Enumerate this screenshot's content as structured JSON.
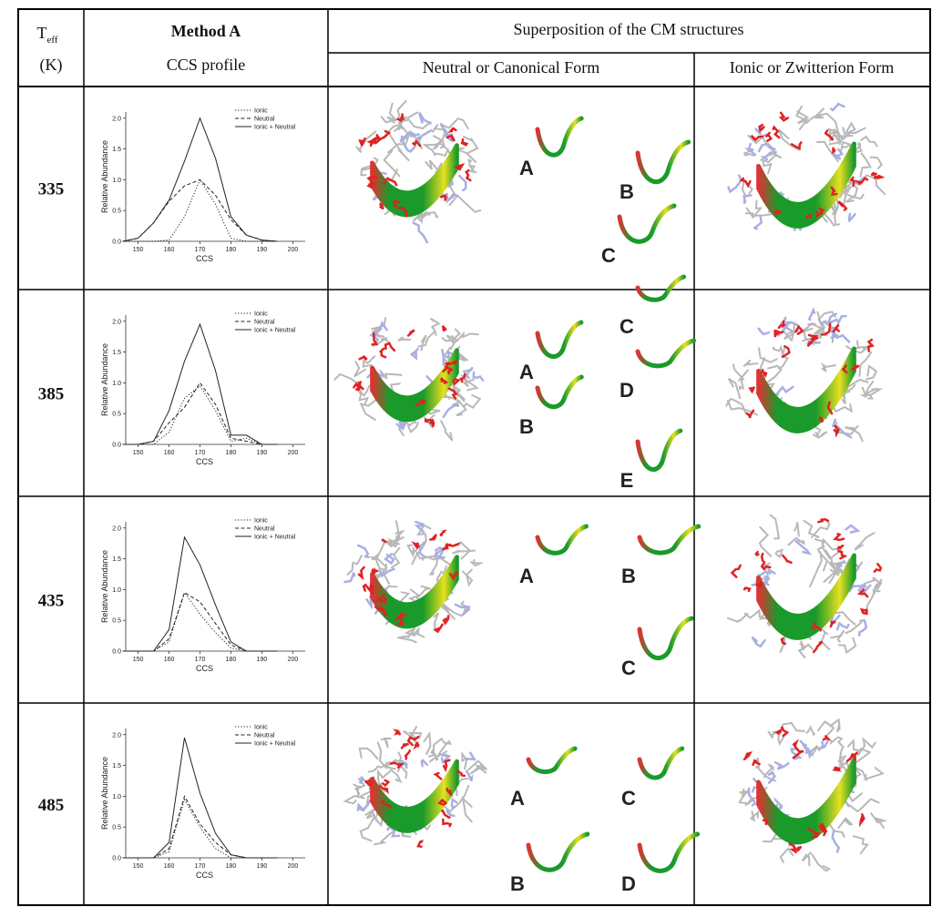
{
  "header": {
    "teff_symbol": "T",
    "teff_subscript": "eff",
    "teff_unit": "(K)",
    "method": "Method A",
    "profile": "CCS profile",
    "superposition": "Superposition of the CM structures",
    "neutral_form": "Neutral or Canonical Form",
    "ionic_form": "Ionic or Zwitterion Form"
  },
  "rows": [
    {
      "teff": "335",
      "labels": [
        "A",
        "B",
        "C"
      ],
      "chart_data": {
        "type": "line",
        "xlabel": "CCS",
        "ylabel": "Relative Abundance",
        "x": [
          145,
          150,
          155,
          160,
          165,
          170,
          175,
          180,
          185,
          190,
          195
        ],
        "xlim": [
          146,
          204
        ],
        "xticks": [
          150,
          160,
          170,
          180,
          190,
          200
        ],
        "ylim": [
          0,
          2.1
        ],
        "yticks": [
          {
            "value": 0,
            "label": "0.0"
          },
          {
            "value": 0.5,
            "label": "0.5"
          },
          {
            "value": 1,
            "label": "1.0"
          },
          {
            "value": 1.5,
            "label": "1.5"
          },
          {
            "value": 2,
            "label": "2.0"
          }
        ],
        "series": [
          {
            "name": "Ionic",
            "style": "dotted",
            "color": "#222222",
            "values": [
              0,
              0,
              0,
              0.02,
              0.4,
              1.0,
              0.6,
              0.05,
              0,
              0,
              0
            ]
          },
          {
            "name": "Neutral",
            "style": "dashed",
            "color": "#222222",
            "values": [
              0,
              0.05,
              0.3,
              0.65,
              0.9,
              1.0,
              0.75,
              0.35,
              0.1,
              0.02,
              0
            ]
          },
          {
            "name": "Ionic + Neutral",
            "style": "solid",
            "color": "#222222",
            "values": [
              0,
              0.05,
              0.3,
              0.67,
              1.3,
              2.0,
              1.35,
              0.4,
              0.1,
              0.02,
              0
            ]
          }
        ]
      }
    },
    {
      "teff": "385",
      "labels": [
        "A",
        "B",
        "C",
        "D",
        "E"
      ],
      "chart_data": {
        "type": "line",
        "xlabel": "CCS",
        "ylabel": "Relative Abundance",
        "x": [
          145,
          150,
          155,
          160,
          165,
          170,
          175,
          180,
          185,
          190,
          195
        ],
        "xlim": [
          146,
          204
        ],
        "xticks": [
          150,
          160,
          170,
          180,
          190,
          200
        ],
        "ylim": [
          0,
          2.1
        ],
        "yticks": [
          {
            "value": 0,
            "label": "0.0"
          },
          {
            "value": 0.5,
            "label": "0.5"
          },
          {
            "value": 1,
            "label": "1.0"
          },
          {
            "value": 1.5,
            "label": "1.5"
          },
          {
            "value": 2,
            "label": "2.0"
          }
        ],
        "series": [
          {
            "name": "Ionic",
            "style": "dotted",
            "color": "#222222",
            "values": [
              0,
              0,
              0,
              0.2,
              0.75,
              0.95,
              0.55,
              0.05,
              0.1,
              0,
              0
            ]
          },
          {
            "name": "Neutral",
            "style": "dashed",
            "color": "#222222",
            "values": [
              0,
              0,
              0.05,
              0.35,
              0.6,
              1.0,
              0.65,
              0.1,
              0.05,
              0,
              0
            ]
          },
          {
            "name": "Ionic + Neutral",
            "style": "solid",
            "color": "#222222",
            "values": [
              0,
              0,
              0.05,
              0.55,
              1.35,
              1.95,
              1.2,
              0.15,
              0.15,
              0,
              0
            ]
          }
        ]
      }
    },
    {
      "teff": "435",
      "labels": [
        "A",
        "B",
        "C"
      ],
      "chart_data": {
        "type": "line",
        "xlabel": "CCS",
        "ylabel": "Relative Abundance",
        "x": [
          145,
          150,
          155,
          160,
          165,
          170,
          175,
          180,
          185,
          190,
          195
        ],
        "xlim": [
          146,
          204
        ],
        "xticks": [
          150,
          160,
          170,
          180,
          190,
          200
        ],
        "ylim": [
          0,
          2.1
        ],
        "yticks": [
          {
            "value": 0,
            "label": "0.0"
          },
          {
            "value": 0.5,
            "label": "0.5"
          },
          {
            "value": 1,
            "label": "1.0"
          },
          {
            "value": 1.5,
            "label": "1.5"
          },
          {
            "value": 2,
            "label": "2.0"
          }
        ],
        "series": [
          {
            "name": "Ionic",
            "style": "dotted",
            "color": "#222222",
            "values": [
              0,
              0,
              0,
              0.15,
              0.95,
              0.6,
              0.3,
              0.05,
              0,
              0,
              0
            ]
          },
          {
            "name": "Neutral",
            "style": "dashed",
            "color": "#222222",
            "values": [
              0,
              0,
              0,
              0.2,
              0.95,
              0.8,
              0.45,
              0.1,
              0,
              0,
              0
            ]
          },
          {
            "name": "Ionic + Neutral",
            "style": "solid",
            "color": "#222222",
            "values": [
              0,
              0,
              0,
              0.35,
              1.85,
              1.4,
              0.75,
              0.15,
              0,
              0,
              0
            ]
          }
        ]
      }
    },
    {
      "teff": "485",
      "labels": [
        "A",
        "B",
        "C",
        "D"
      ],
      "chart_data": {
        "type": "line",
        "xlabel": "CCS",
        "ylabel": "Relative Abundance",
        "x": [
          145,
          150,
          155,
          160,
          165,
          170,
          175,
          180,
          185,
          190,
          195
        ],
        "xlim": [
          146,
          204
        ],
        "xticks": [
          150,
          160,
          170,
          180,
          190,
          200
        ],
        "ylim": [
          0,
          2.1
        ],
        "yticks": [
          {
            "value": 0,
            "label": "0.0"
          },
          {
            "value": 0.5,
            "label": "0.5"
          },
          {
            "value": 1,
            "label": "1.0"
          },
          {
            "value": 1.5,
            "label": "1.5"
          },
          {
            "value": 2,
            "label": "2.0"
          }
        ],
        "series": [
          {
            "name": "Ionic",
            "style": "dotted",
            "color": "#222222",
            "values": [
              0,
              0,
              0,
              0.1,
              0.95,
              0.5,
              0.15,
              0,
              0,
              0,
              0
            ]
          },
          {
            "name": "Neutral",
            "style": "dashed",
            "color": "#222222",
            "values": [
              0,
              0,
              0,
              0.15,
              1.0,
              0.55,
              0.25,
              0.05,
              0,
              0,
              0
            ]
          },
          {
            "name": "Ionic + Neutral",
            "style": "solid",
            "color": "#222222",
            "values": [
              0,
              0,
              0,
              0.25,
              1.95,
              1.05,
              0.4,
              0.05,
              0,
              0,
              0
            ]
          }
        ]
      }
    }
  ]
}
